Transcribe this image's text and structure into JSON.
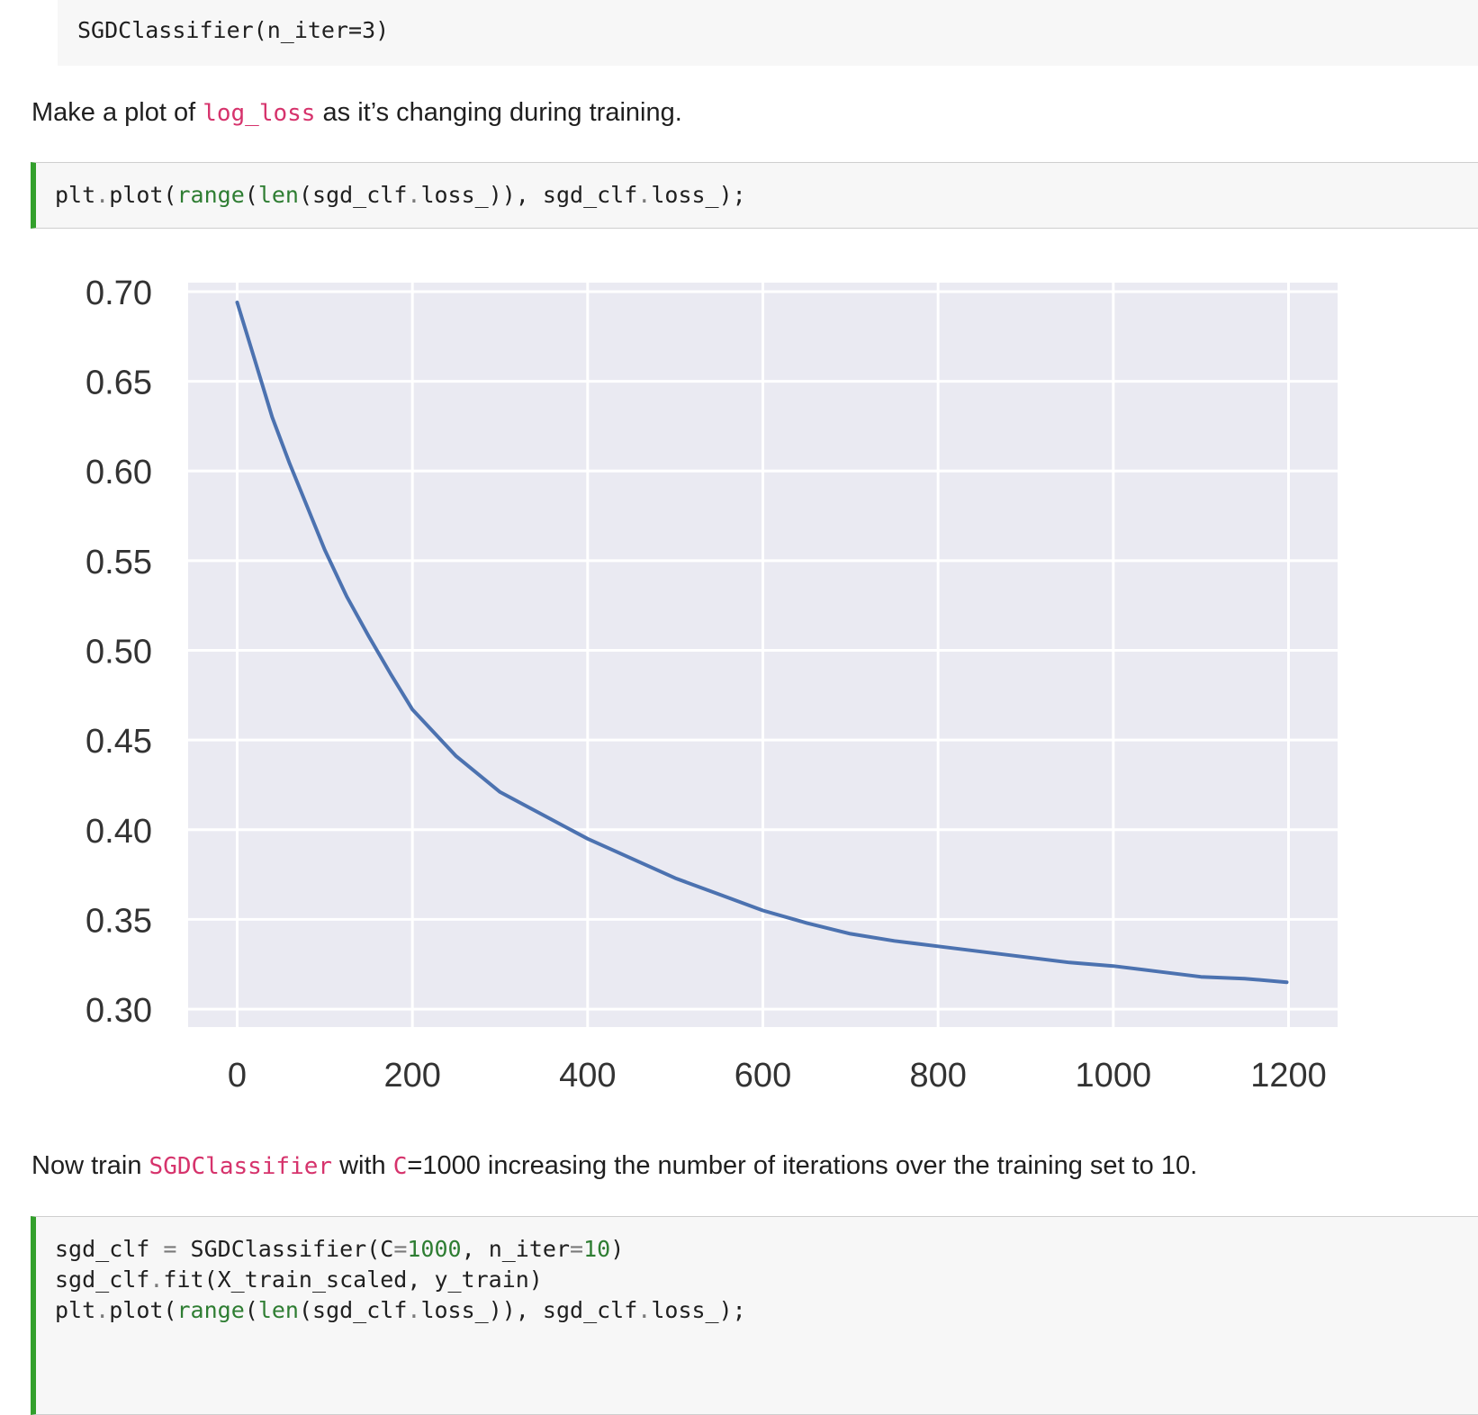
{
  "output_text": "SGDClassifier(n_iter=3)",
  "md1": {
    "before": "Make a plot of ",
    "code": "log_loss",
    "after": " as it’s changing during training."
  },
  "cell1": {
    "line1": [
      "plt",
      ".",
      "plot(",
      "range",
      "(",
      "len",
      "(sgd_clf",
      ".",
      "loss_)), sgd_clf",
      ".",
      "loss_);"
    ]
  },
  "md2": {
    "t1": "Now train ",
    "c1": "SGDClassifier",
    "t2": " with ",
    "c2": "C",
    "t3": "=1000 increasing the number of iterations over the training set to 10."
  },
  "cell2": {
    "l1a": "sgd_clf ",
    "l1b": "=",
    "l1c": " SGDClassifier(C",
    "l1d": "=",
    "l1e": "1000",
    "l1f": ", n_iter",
    "l1g": "=",
    "l1h": "10",
    "l1i": ")",
    "l2a": "sgd_clf",
    "l2b": ".",
    "l2c": "fit(X_train_scaled, y_train)",
    "l3": [
      "plt",
      ".",
      "plot(",
      "range",
      "(",
      "len",
      "(sgd_clf",
      ".",
      "loss_)), sgd_clf",
      ".",
      "loss_);"
    ]
  },
  "colors": {
    "line": "#4c72b0",
    "plot_bg": "#eaeaf2",
    "grid": "#ffffff",
    "code_green": "#2e7d32",
    "md_code": "#d6336c",
    "cell_border": "#33a02c"
  },
  "chart_data": {
    "type": "line",
    "title": "",
    "xlabel": "",
    "ylabel": "",
    "xlim": [
      -56,
      1256
    ],
    "ylim": [
      0.29,
      0.705
    ],
    "xticks": [
      0,
      200,
      400,
      600,
      800,
      1000,
      1200
    ],
    "xtick_labels": [
      "0",
      "200",
      "400",
      "600",
      "800",
      "1000",
      "1200"
    ],
    "yticks": [
      0.3,
      0.35,
      0.4,
      0.45,
      0.5,
      0.55,
      0.6,
      0.65,
      0.7
    ],
    "ytick_labels": [
      "0.30",
      "0.35",
      "0.40",
      "0.45",
      "0.50",
      "0.55",
      "0.60",
      "0.65",
      "0.70"
    ],
    "grid": true,
    "series": [
      {
        "x": [
          0,
          20,
          40,
          60,
          80,
          100,
          125,
          150,
          175,
          200,
          250,
          300,
          350,
          400,
          450,
          500,
          550,
          600,
          650,
          700,
          750,
          800,
          850,
          900,
          950,
          1000,
          1050,
          1100,
          1150,
          1198
        ],
        "values": [
          0.694,
          0.662,
          0.63,
          0.604,
          0.58,
          0.556,
          0.53,
          0.508,
          0.487,
          0.467,
          0.441,
          0.421,
          0.408,
          0.395,
          0.384,
          0.373,
          0.364,
          0.355,
          0.348,
          0.342,
          0.338,
          0.335,
          0.332,
          0.329,
          0.326,
          0.324,
          0.321,
          0.318,
          0.317,
          0.315
        ]
      }
    ]
  }
}
